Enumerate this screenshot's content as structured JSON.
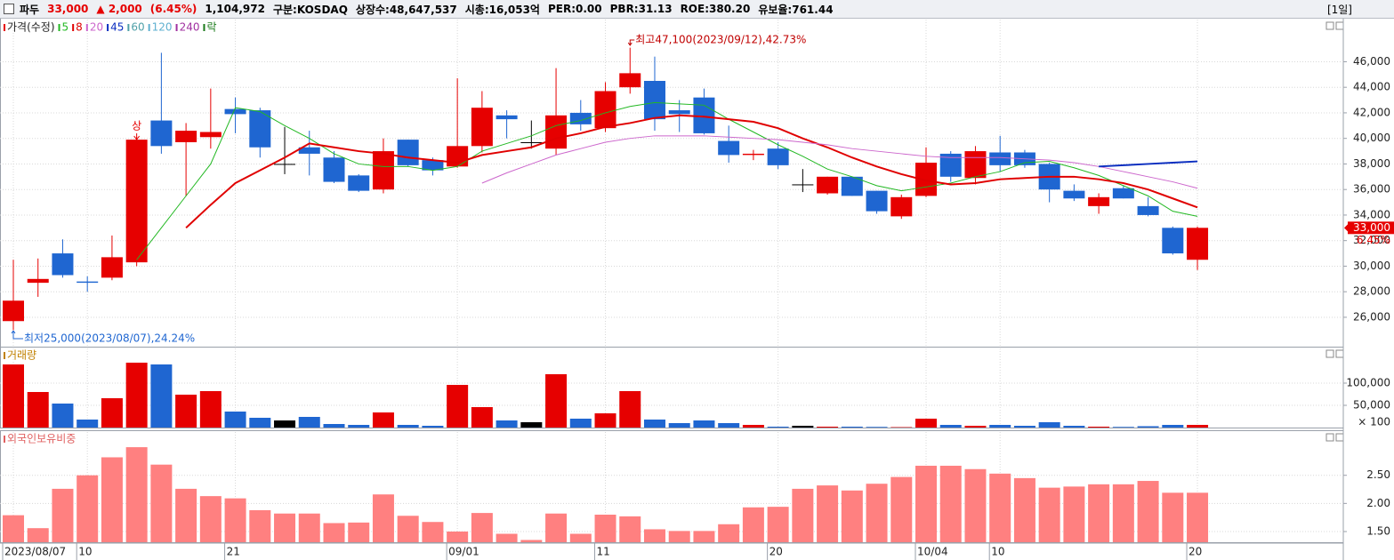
{
  "header": {
    "name": "파두",
    "price": "33,000",
    "change": "▲ 2,000",
    "change_pct": "(6.45%)",
    "volume": "1,104,972",
    "market": "구분:KOSDAQ",
    "shares": "상장수:48,647,537",
    "market_cap": "시총:16,053억",
    "per": "PER:0.00",
    "pbr": "PBR:31.13",
    "roe": "ROE:380.20",
    "reserve_ratio": "유보율:761.44",
    "period": "[1일]"
  },
  "chart_data": [
    {
      "type": "candlestick",
      "title": "가격(수정)",
      "title_color": "#e60000",
      "categories": [
        "2023/08/07",
        null,
        null,
        "10",
        null,
        null,
        null,
        null,
        null,
        "21",
        null,
        null,
        null,
        null,
        null,
        null,
        null,
        null,
        "09/01",
        null,
        null,
        null,
        null,
        null,
        "11",
        null,
        null,
        null,
        null,
        null,
        null,
        "20",
        null,
        null,
        null,
        null,
        null,
        "10/04",
        null,
        null,
        "10",
        null,
        null,
        null,
        null,
        null,
        null,
        null,
        "20"
      ],
      "open": [
        25700,
        28700,
        31000,
        28800,
        29100,
        30300,
        41400,
        39700,
        40100,
        42300,
        42200,
        38000,
        39300,
        38500,
        37100,
        36000,
        39900,
        38300,
        37800,
        39400,
        41800,
        39700,
        39200,
        42000,
        40800,
        44000,
        44500,
        42200,
        43200,
        39800,
        38700,
        39200,
        36400,
        35700,
        37000,
        35900,
        33900,
        35500,
        38800,
        36900,
        38900,
        38900,
        38000,
        35900,
        34700,
        36100,
        34700,
        33000,
        30500
      ],
      "high": [
        30500,
        30600,
        32100,
        29200,
        32400,
        40100,
        46700,
        41200,
        43900,
        43200,
        42400,
        40900,
        40600,
        39000,
        37200,
        40000,
        39900,
        38500,
        44700,
        43700,
        42200,
        41400,
        45500,
        43000,
        44400,
        47100,
        46400,
        43000,
        43900,
        41000,
        39100,
        39700,
        37600,
        37000,
        37000,
        35900,
        35600,
        39300,
        39000,
        39400,
        40200,
        39100,
        38100,
        36400,
        35700,
        36300,
        35400,
        33100,
        33100
      ],
      "low": [
        25000,
        27600,
        29100,
        28000,
        28900,
        30000,
        38800,
        35500,
        39200,
        40400,
        38500,
        37200,
        37100,
        36500,
        35800,
        35700,
        37800,
        37100,
        37700,
        38900,
        40000,
        39200,
        38700,
        40600,
        40500,
        43500,
        40600,
        40500,
        40300,
        38100,
        38300,
        37600,
        35800,
        35600,
        35500,
        34100,
        33700,
        35400,
        36600,
        36400,
        37400,
        37700,
        35000,
        35100,
        34100,
        35300,
        33900,
        30900,
        29700
      ],
      "close": [
        27300,
        29000,
        29300,
        28700,
        30700,
        39900,
        39400,
        40600,
        40500,
        41900,
        39300,
        38000,
        38800,
        36600,
        35900,
        39000,
        37900,
        37500,
        39400,
        42400,
        41500,
        39700,
        41800,
        41100,
        43700,
        45100,
        41500,
        41900,
        40400,
        38700,
        38800,
        37900,
        36400,
        37000,
        35500,
        34300,
        35400,
        38100,
        37000,
        39000,
        37900,
        37900,
        36000,
        35300,
        35400,
        35300,
        34000,
        31000,
        33000
      ],
      "up_color": "#e60000",
      "down_color": "#1f66d1",
      "flat_color": "#000000",
      "series": [
        {
          "name": "5",
          "color": "#22b822",
          "values": [
            null,
            null,
            null,
            null,
            null,
            30500,
            33000,
            35500,
            38000,
            42400,
            42100,
            41000,
            40000,
            38800,
            38000,
            37800,
            37800,
            37500,
            37800,
            39000,
            39600,
            40200,
            41000,
            41400,
            42000,
            42500,
            42800,
            42700,
            42600,
            41500,
            40500,
            39500,
            38600,
            37600,
            37000,
            36300,
            35900,
            36200,
            36500,
            37000,
            37400,
            38100,
            38200,
            37700,
            37100,
            36300,
            35500,
            34300,
            33900
          ]
        },
        {
          "name": "8",
          "color": "#e00000",
          "width": 2,
          "values": [
            null,
            null,
            null,
            null,
            null,
            null,
            null,
            33000,
            34800,
            36500,
            37500,
            38500,
            39600,
            39300,
            39000,
            38800,
            38500,
            38300,
            38100,
            38700,
            39000,
            39300,
            40000,
            40400,
            40900,
            41200,
            41600,
            41800,
            41700,
            41500,
            41300,
            40800,
            40000,
            39300,
            38500,
            37800,
            37200,
            36700,
            36400,
            36500,
            36800,
            36900,
            37000,
            37000,
            36800,
            36500,
            36000,
            35300,
            34600
          ]
        },
        {
          "name": "20",
          "color": "#cc66cc",
          "values": [
            null,
            null,
            null,
            null,
            null,
            null,
            null,
            null,
            null,
            null,
            null,
            null,
            null,
            null,
            null,
            null,
            null,
            null,
            null,
            36500,
            37300,
            38000,
            38700,
            39200,
            39700,
            40000,
            40200,
            40200,
            40200,
            40100,
            40000,
            39900,
            39700,
            39500,
            39200,
            39000,
            38800,
            38600,
            38500,
            38500,
            38500,
            38400,
            38300,
            38100,
            37800,
            37400,
            37000,
            36600,
            36100
          ]
        },
        {
          "name": "45",
          "color": "#0a2dbf",
          "width": 2,
          "values": [
            null,
            null,
            null,
            null,
            null,
            null,
            null,
            null,
            null,
            null,
            null,
            null,
            null,
            null,
            null,
            null,
            null,
            null,
            null,
            null,
            null,
            null,
            null,
            null,
            null,
            null,
            null,
            null,
            null,
            null,
            null,
            null,
            null,
            null,
            null,
            null,
            null,
            null,
            null,
            null,
            null,
            null,
            null,
            null,
            37800,
            37900,
            38000,
            38100,
            38200
          ]
        },
        {
          "name": "60",
          "color": "#4fa0a8"
        },
        {
          "name": "120",
          "color": "#5fb0d0"
        },
        {
          "name": "240",
          "color": "#a030a0"
        },
        {
          "name": "락",
          "color": "#1a7a1a"
        }
      ],
      "ylim": [
        23700,
        49300
      ],
      "yticks": [
        {
          "value": 26000,
          "label": "26,000"
        },
        {
          "value": 28000,
          "label": "28,000"
        },
        {
          "value": 30000,
          "label": "30,000"
        },
        {
          "value": 32000,
          "label": "32,000"
        },
        {
          "value": 34000,
          "label": "34,000"
        },
        {
          "value": 36000,
          "label": "36,000"
        },
        {
          "value": 38000,
          "label": "38,000"
        },
        {
          "value": 40000,
          "label": "40,000"
        },
        {
          "value": 42000,
          "label": "42,000"
        },
        {
          "value": 44000,
          "label": "44,000"
        },
        {
          "value": 46000,
          "label": "46,000"
        }
      ],
      "annotations": {
        "high": "최고47,100(2023/09/12),42.73%",
        "low": "최저25,000(2023/08/07),24.24%",
        "limit_up": "상",
        "last_price": "33,000",
        "last_change": "6.45%"
      },
      "grid": true
    },
    {
      "type": "bar",
      "title": "거래량",
      "title_color": "#c08000",
      "values": [
        142000,
        80000,
        54000,
        18000,
        66000,
        146000,
        142000,
        74000,
        82000,
        36000,
        22000,
        16000,
        24000,
        8000,
        6000,
        34000,
        6000,
        4000,
        96000,
        46000,
        16000,
        12000,
        120000,
        20000,
        32000,
        82000,
        18000,
        10000,
        16000,
        10000,
        6000,
        2000,
        4000,
        2000,
        2000,
        1500,
        1000,
        20000,
        6000,
        4000,
        6000,
        4000,
        12000,
        4000,
        2000,
        1500,
        3000,
        6000,
        6000
      ],
      "colors": [
        "#e60000",
        "#e60000",
        "#1f66d1",
        "#1f66d1",
        "#e60000",
        "#e60000",
        "#1f66d1",
        "#e60000",
        "#e60000",
        "#1f66d1",
        "#1f66d1",
        "#000000",
        "#1f66d1",
        "#1f66d1",
        "#1f66d1",
        "#e60000",
        "#1f66d1",
        "#1f66d1",
        "#e60000",
        "#e60000",
        "#1f66d1",
        "#000000",
        "#e60000",
        "#1f66d1",
        "#e60000",
        "#e60000",
        "#1f66d1",
        "#1f66d1",
        "#1f66d1",
        "#1f66d1",
        "#e60000",
        "#1f66d1",
        "#000000",
        "#e60000",
        "#1f66d1",
        "#1f66d1",
        "#e60000",
        "#e60000",
        "#1f66d1",
        "#e60000",
        "#1f66d1",
        "#1f66d1",
        "#1f66d1",
        "#1f66d1",
        "#e60000",
        "#1f66d1",
        "#1f66d1",
        "#1f66d1",
        "#e60000"
      ],
      "ylim": [
        0,
        178000
      ],
      "yticks": [
        {
          "value": 50000,
          "label": "50,000"
        },
        {
          "value": 100000,
          "label": "100,000"
        }
      ],
      "y_unit_label": "× 100",
      "grid": true
    },
    {
      "type": "bar",
      "title": "외국인보유비중",
      "title_color": "#e06060",
      "values": [
        1.79,
        1.56,
        2.26,
        2.5,
        2.82,
        3.0,
        2.69,
        2.26,
        2.13,
        2.09,
        1.88,
        1.82,
        1.82,
        1.65,
        1.66,
        2.16,
        1.78,
        1.67,
        1.5,
        1.83,
        1.46,
        1.35,
        1.82,
        1.46,
        1.8,
        1.77,
        1.54,
        1.51,
        1.51,
        1.63,
        1.93,
        1.94,
        2.26,
        2.32,
        2.23,
        2.35,
        2.47,
        2.67,
        2.67,
        2.61,
        2.53,
        2.45,
        2.28,
        2.3,
        2.34,
        2.34,
        2.4,
        2.19,
        2.19
      ],
      "color": "#ff8080",
      "ylim": [
        1.31,
        3.27
      ],
      "yticks": [
        {
          "value": 1.5,
          "label": "1.50"
        },
        {
          "value": 2,
          "label": "2.00"
        },
        {
          "value": 2.5,
          "label": "2.50"
        }
      ],
      "grid": true
    }
  ]
}
